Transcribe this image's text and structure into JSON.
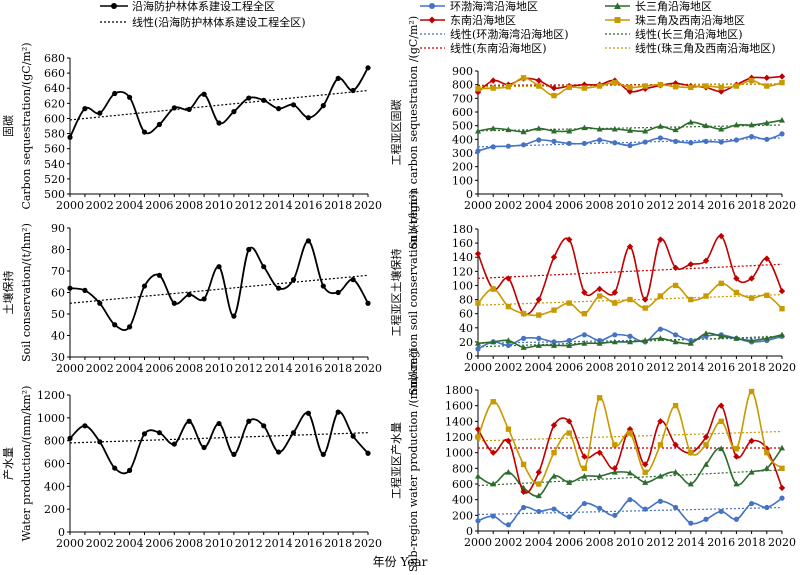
{
  "x_axis_label": "年份 Year",
  "legend_left": {
    "observed": "沿海防护林体系建设工程全区",
    "trend": "线性(沿海防护林体系建设工程全区)"
  },
  "legend_right": {
    "bohai": "环渤海湾沿海地区",
    "yangtze": "长三角沿海地区",
    "southeast": "东南沿海地区",
    "pearl": "珠三角及西南沿海地区",
    "trend_bohai": "线性(环渤海湾沿海地区)",
    "trend_yangtze": "线性(长三角沿海地区)",
    "trend_southeast": "线性(东南沿海地区)",
    "trend_pearl": "线性(珠三角及西南沿海地区)"
  },
  "colors": {
    "bohai": "#4472C4",
    "yangtze": "#2E6B2E",
    "southeast": "#C00000",
    "pearl": "#C89A00",
    "overall": "#000000"
  },
  "chart_data": [
    {
      "type": "line",
      "panel": "left-1",
      "ylabel_cn": "固碳",
      "ylabel_en": "Carbon sequestration/(gC/m²)",
      "ylim": [
        500,
        680
      ],
      "yticks": [
        500,
        520,
        540,
        560,
        580,
        600,
        620,
        640,
        660,
        680
      ],
      "x": [
        2000,
        2001,
        2002,
        2003,
        2004,
        2005,
        2006,
        2007,
        2008,
        2009,
        2010,
        2011,
        2012,
        2013,
        2014,
        2015,
        2016,
        2017,
        2018,
        2019,
        2020
      ],
      "series": [
        {
          "name": "沿海防护林体系建设工程全区",
          "values": [
            575,
            613,
            607,
            633,
            628,
            582,
            592,
            614,
            612,
            632,
            594,
            609,
            627,
            624,
            613,
            618,
            601,
            617,
            653,
            637,
            667
          ]
        }
      ],
      "trend": {
        "name": "线性(沿海防护林体系建设工程全区)",
        "start": 598,
        "end": 637
      }
    },
    {
      "type": "line",
      "panel": "right-1",
      "ylabel_cn": "工程亚区固碳",
      "ylabel_en": "Sub-region carbon sequestration /(gC/m²)",
      "ylim": [
        0,
        900
      ],
      "yticks": [
        0,
        100,
        200,
        300,
        400,
        500,
        600,
        700,
        800,
        900
      ],
      "x": [
        2000,
        2001,
        2002,
        2003,
        2004,
        2005,
        2006,
        2007,
        2008,
        2009,
        2010,
        2011,
        2012,
        2013,
        2014,
        2015,
        2016,
        2017,
        2018,
        2019,
        2020
      ],
      "series": [
        {
          "name": "环渤海湾沿海地区",
          "values": [
            315,
            345,
            350,
            360,
            395,
            385,
            370,
            370,
            395,
            375,
            355,
            380,
            410,
            385,
            375,
            385,
            380,
            395,
            420,
            400,
            440
          ]
        },
        {
          "name": "长三角沿海地区",
          "values": [
            460,
            480,
            470,
            455,
            480,
            460,
            460,
            485,
            475,
            475,
            465,
            460,
            495,
            470,
            525,
            500,
            475,
            505,
            505,
            520,
            540
          ]
        },
        {
          "name": "东南沿海地区",
          "values": [
            745,
            830,
            800,
            845,
            830,
            775,
            790,
            800,
            800,
            830,
            750,
            770,
            795,
            810,
            790,
            780,
            750,
            800,
            850,
            850,
            860
          ]
        },
        {
          "name": "珠三角及西南沿海地区",
          "values": [
            770,
            775,
            785,
            850,
            790,
            720,
            780,
            775,
            790,
            815,
            780,
            790,
            800,
            785,
            780,
            790,
            780,
            790,
            830,
            790,
            815
          ]
        }
      ],
      "trends": [
        {
          "name": "线性(环渤海湾沿海地区)",
          "start": 345,
          "end": 410
        },
        {
          "name": "线性(长三角沿海地区)",
          "start": 462,
          "end": 505
        },
        {
          "name": "线性(东南沿海地区)",
          "start": 795,
          "end": 805
        },
        {
          "name": "线性(珠三角及西南沿海地区)",
          "start": 785,
          "end": 805
        }
      ]
    },
    {
      "type": "line",
      "panel": "left-2",
      "ylabel_cn": "土壤保持",
      "ylabel_en": "Soil conservation/(t/hm²)",
      "ylim": [
        30,
        90
      ],
      "yticks": [
        30,
        40,
        50,
        60,
        70,
        80,
        90
      ],
      "x": [
        2000,
        2001,
        2002,
        2003,
        2004,
        2005,
        2006,
        2007,
        2008,
        2009,
        2010,
        2011,
        2012,
        2013,
        2014,
        2015,
        2016,
        2017,
        2018,
        2019,
        2020
      ],
      "series": [
        {
          "name": "沿海防护林体系建设工程全区",
          "values": [
            62,
            61,
            55,
            45,
            44,
            63,
            68,
            55,
            59,
            57,
            72,
            49,
            80,
            72,
            62,
            66,
            84,
            63,
            60,
            66,
            55
          ]
        }
      ],
      "trend": {
        "name": "线性(沿海防护林体系建设工程全区)",
        "start": 55,
        "end": 68
      }
    },
    {
      "type": "line",
      "panel": "right-2",
      "ylabel_cn": "工程亚区土壤保持",
      "ylabel_en": "Sub-region soil conservation /(t/hm²)",
      "ylim": [
        0,
        180
      ],
      "yticks": [
        0,
        20,
        40,
        60,
        80,
        100,
        120,
        140,
        160,
        180
      ],
      "x": [
        2000,
        2001,
        2002,
        2003,
        2004,
        2005,
        2006,
        2007,
        2008,
        2009,
        2010,
        2011,
        2012,
        2013,
        2014,
        2015,
        2016,
        2017,
        2018,
        2019,
        2020
      ],
      "series": [
        {
          "name": "环渤海湾沿海地区",
          "values": [
            10,
            20,
            15,
            25,
            25,
            20,
            22,
            30,
            22,
            30,
            28,
            20,
            38,
            30,
            22,
            28,
            30,
            25,
            20,
            22,
            28
          ]
        },
        {
          "name": "长三角沿海地区",
          "values": [
            18,
            20,
            22,
            12,
            15,
            15,
            15,
            18,
            18,
            20,
            20,
            22,
            25,
            20,
            18,
            32,
            28,
            25,
            22,
            25,
            30
          ]
        },
        {
          "name": "东南沿海地区",
          "values": [
            145,
            95,
            110,
            60,
            80,
            140,
            165,
            90,
            95,
            90,
            155,
            80,
            165,
            125,
            130,
            135,
            170,
            110,
            110,
            138,
            92
          ]
        },
        {
          "name": "珠三角及西南沿海地区",
          "values": [
            75,
            95,
            70,
            60,
            58,
            65,
            75,
            60,
            85,
            75,
            80,
            68,
            85,
            100,
            80,
            85,
            103,
            90,
            82,
            86,
            67
          ]
        }
      ],
      "trends": [
        {
          "name": "线性(环渤海湾沿海地区)",
          "start": 18,
          "end": 26
        },
        {
          "name": "线性(长三角沿海地区)",
          "start": 13,
          "end": 28
        },
        {
          "name": "线性(东南沿海地区)",
          "start": 110,
          "end": 130
        },
        {
          "name": "线性(珠三角及西南沿海地区)",
          "start": 72,
          "end": 87
        }
      ]
    },
    {
      "type": "line",
      "panel": "left-3",
      "ylabel_cn": "产水量",
      "ylabel_en": "Water production/(mm/km²)",
      "ylim": [
        0,
        1200
      ],
      "yticks": [
        0,
        200,
        400,
        600,
        800,
        1000,
        1200
      ],
      "x": [
        2000,
        2001,
        2002,
        2003,
        2004,
        2005,
        2006,
        2007,
        2008,
        2009,
        2010,
        2011,
        2012,
        2013,
        2014,
        2015,
        2016,
        2017,
        2018,
        2019,
        2020
      ],
      "series": [
        {
          "name": "沿海防护林体系建设工程全区",
          "values": [
            820,
            930,
            790,
            560,
            540,
            860,
            870,
            770,
            970,
            740,
            950,
            680,
            970,
            930,
            700,
            870,
            1040,
            680,
            1050,
            840,
            690
          ]
        }
      ],
      "trend": {
        "name": "线性(沿海防护林体系建设工程全区)",
        "start": 780,
        "end": 870
      }
    },
    {
      "type": "line",
      "panel": "right-3",
      "ylabel_cn": "工程亚区产水量",
      "ylabel_en": "Sub-region water production /(mm/km²)",
      "ylim": [
        0,
        1800
      ],
      "yticks": [
        0,
        200,
        400,
        600,
        800,
        1000,
        1200,
        1400,
        1600,
        1800
      ],
      "x": [
        2000,
        2001,
        2002,
        2003,
        2004,
        2005,
        2006,
        2007,
        2008,
        2009,
        2010,
        2011,
        2012,
        2013,
        2014,
        2015,
        2016,
        2017,
        2018,
        2019,
        2020
      ],
      "series": [
        {
          "name": "环渤海湾沿海地区",
          "values": [
            130,
            190,
            80,
            300,
            250,
            280,
            180,
            350,
            290,
            200,
            400,
            280,
            380,
            300,
            100,
            150,
            250,
            150,
            350,
            300,
            420
          ]
        },
        {
          "name": "长三角沿海地区",
          "values": [
            700,
            600,
            750,
            550,
            450,
            700,
            620,
            700,
            700,
            750,
            740,
            620,
            700,
            750,
            600,
            850,
            1050,
            600,
            750,
            800,
            1060
          ]
        },
        {
          "name": "东南沿海地区",
          "values": [
            1300,
            1000,
            1150,
            500,
            750,
            1350,
            1400,
            950,
            1000,
            800,
            1300,
            850,
            1400,
            1100,
            1000,
            1200,
            1600,
            950,
            1150,
            1050,
            550
          ]
        },
        {
          "name": "珠三角及西南沿海地区",
          "values": [
            1200,
            1650,
            1300,
            850,
            600,
            1000,
            1250,
            800,
            1700,
            1100,
            1250,
            750,
            1100,
            1600,
            1000,
            1100,
            1400,
            1050,
            1780,
            1000,
            800
          ]
        }
      ],
      "trends": [
        {
          "name": "线性(环渤海湾沿海地区)",
          "start": 210,
          "end": 300
        },
        {
          "name": "线性(长三角沿海地区)",
          "start": 580,
          "end": 780
        },
        {
          "name": "线性(东南沿海地区)",
          "start": 1060,
          "end": 1060
        },
        {
          "name": "线性(珠三角及西南沿海地区)",
          "start": 1150,
          "end": 1270
        }
      ]
    }
  ]
}
